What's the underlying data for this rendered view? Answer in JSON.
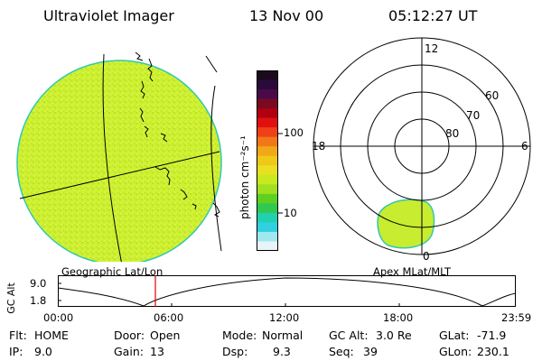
{
  "header": {
    "title": "Ultraviolet Imager",
    "date": "13 Nov 00",
    "time": "05:12:27 UT"
  },
  "colorbar": {
    "unit": "photon cm⁻²s⁻¹",
    "tick_100": "100",
    "tick_10": "10",
    "colors_top_to_bottom": [
      "#1b0a1e",
      "#2a0a3a",
      "#4a0a4a",
      "#7a0a20",
      "#b00010",
      "#e01010",
      "#f04018",
      "#f07818",
      "#f0a818",
      "#f0c818",
      "#e8e020",
      "#c8e820",
      "#a0e020",
      "#60d020",
      "#30c850",
      "#20d0b0",
      "#30d0e0",
      "#a0e8f0",
      "#e8f4f8"
    ]
  },
  "left_panel": {
    "label": "Geographic Lat/Lon",
    "fill_color": "#ccf030"
  },
  "right_panel": {
    "label": "Apex MLat/MLT",
    "mlt_12": "12",
    "mlt_18": "18",
    "mlt_6": "6",
    "mlt_0": "0",
    "lat_60": "60",
    "lat_70": "70",
    "lat_80": "80"
  },
  "altitude_plot": {
    "ylabel": "GC Alt",
    "y_top": "9.0",
    "y_bottom": "1.8",
    "x_ticks": [
      "00:00",
      "06:00",
      "12:00",
      "18:00",
      "23:59"
    ],
    "marker_color": "#e00000"
  },
  "info": {
    "flt_label": "Flt:",
    "flt_value": "HOME",
    "ip_label": "IP:",
    "ip_value": "9.0",
    "door_label": "Door:",
    "door_value": "Open",
    "gain_label": "Gain:",
    "gain_value": "13",
    "mode_label": "Mode:",
    "mode_value": "Normal",
    "dsp_label": "Dsp:",
    "dsp_value": "9.3",
    "gcalt_label": "GC Alt:",
    "gcalt_value": "3.0 Re",
    "seq_label": "Seq:",
    "seq_value": "39",
    "glat_label": "GLat:",
    "glat_value": "-71.9",
    "glon_label": "GLon:",
    "glon_value": "230.1"
  }
}
